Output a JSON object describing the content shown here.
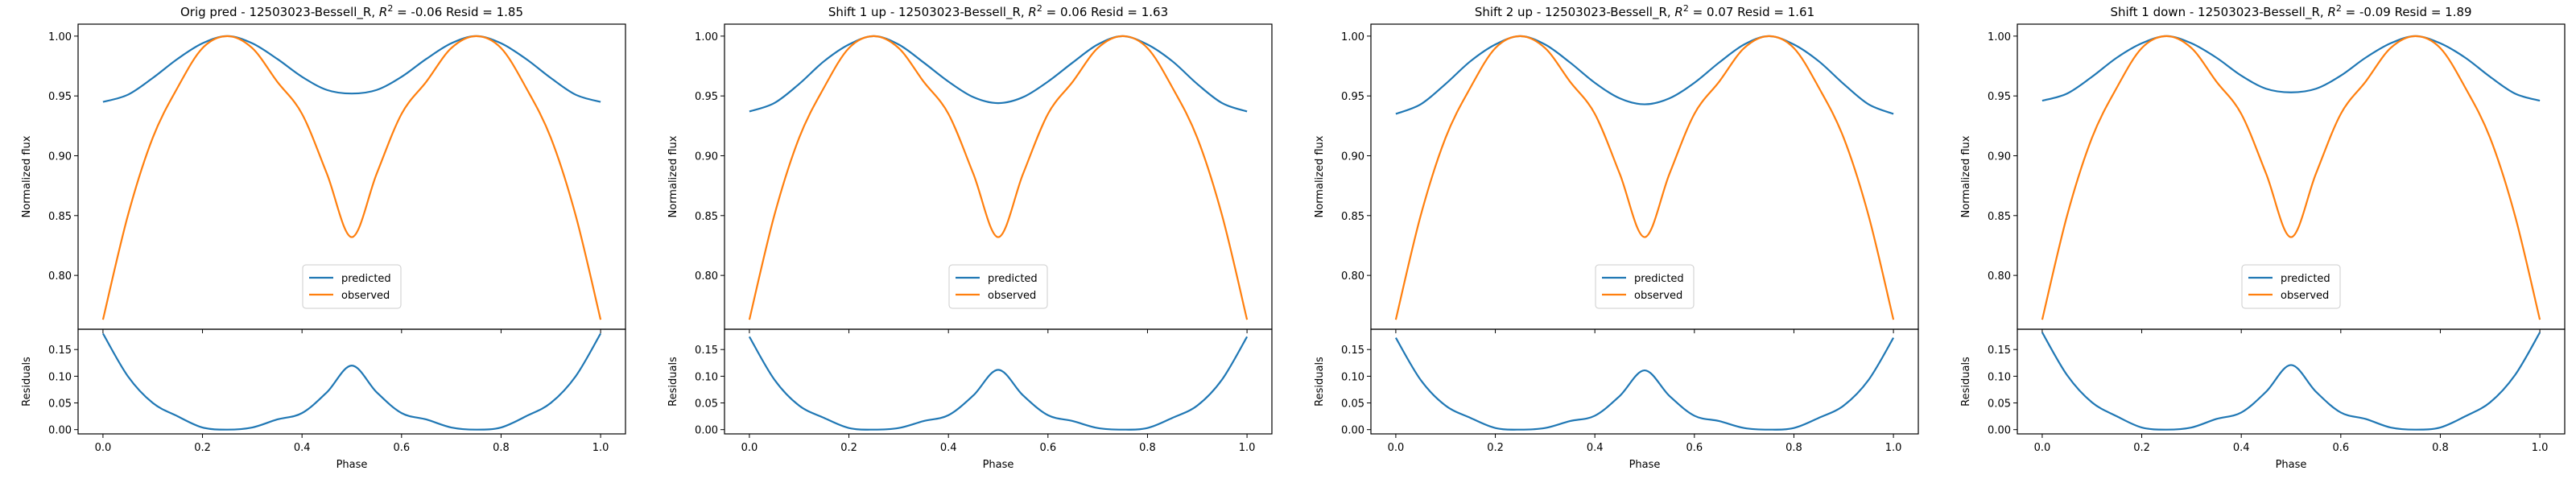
{
  "figure": {
    "colors": {
      "predicted": "#1f77b4",
      "observed": "#ff7f0e",
      "axis": "#000000"
    }
  },
  "chart_data": [
    {
      "type": "line",
      "title": "Orig pred - 12503023-Bessell_R, R² = -0.06 Resid = 1.85",
      "title_parts": {
        "prefix": "Orig pred - 12503023-Bessell_R, ",
        "r2": "-0.06",
        "resid_label": " Resid = ",
        "resid": "1.85"
      },
      "xlabel": "Phase",
      "ylabel": "Normalized flux",
      "residual_ylabel": "Residuals",
      "legend": {
        "placement": "lower center",
        "entries": [
          "predicted",
          "observed"
        ]
      },
      "xlim": [
        -0.05,
        1.05
      ],
      "ylim": [
        0.755,
        1.01
      ],
      "residual_ylim": [
        -0.008,
        0.188
      ],
      "x_ticks": [
        "0.0",
        "0.2",
        "0.4",
        "0.6",
        "0.8",
        "1.0"
      ],
      "y_ticks": [
        "0.80",
        "0.85",
        "0.90",
        "0.95",
        "1.00"
      ],
      "residual_ticks": [
        "0.00",
        "0.05",
        "0.10",
        "0.15"
      ],
      "x": [
        0.0,
        0.05,
        0.1,
        0.15,
        0.2,
        0.25,
        0.3,
        0.35,
        0.4,
        0.45,
        0.5,
        0.55,
        0.6,
        0.65,
        0.7,
        0.75,
        0.8,
        0.85,
        0.9,
        0.95,
        1.0
      ],
      "series": [
        {
          "name": "predicted",
          "values": [
            0.945,
            0.951,
            0.965,
            0.981,
            0.994,
            1.0,
            0.994,
            0.981,
            0.966,
            0.955,
            0.952,
            0.955,
            0.966,
            0.981,
            0.994,
            1.0,
            0.994,
            0.981,
            0.965,
            0.951,
            0.945
          ]
        },
        {
          "name": "observed",
          "values": [
            0.763,
            0.85,
            0.915,
            0.957,
            0.99,
            1.0,
            0.99,
            0.962,
            0.935,
            0.885,
            0.832,
            0.885,
            0.935,
            0.962,
            0.99,
            1.0,
            0.99,
            0.957,
            0.915,
            0.85,
            0.763
          ]
        }
      ],
      "residuals": [
        0.18,
        0.1,
        0.05,
        0.025,
        0.004,
        0.0,
        0.004,
        0.019,
        0.031,
        0.07,
        0.12,
        0.07,
        0.031,
        0.019,
        0.004,
        0.0,
        0.004,
        0.025,
        0.05,
        0.1,
        0.18
      ]
    },
    {
      "type": "line",
      "title": "Shift 1 up - 12503023-Bessell_R, R² = 0.06 Resid = 1.63",
      "title_parts": {
        "prefix": "Shift 1 up - 12503023-Bessell_R, ",
        "r2": "0.06",
        "resid_label": " Resid = ",
        "resid": "1.63"
      },
      "xlabel": "Phase",
      "ylabel": "Normalized flux",
      "residual_ylabel": "Residuals",
      "legend": {
        "placement": "lower center",
        "entries": [
          "predicted",
          "observed"
        ]
      },
      "xlim": [
        -0.05,
        1.05
      ],
      "ylim": [
        0.755,
        1.01
      ],
      "residual_ylim": [
        -0.008,
        0.188
      ],
      "x_ticks": [
        "0.0",
        "0.2",
        "0.4",
        "0.6",
        "0.8",
        "1.0"
      ],
      "y_ticks": [
        "0.80",
        "0.85",
        "0.90",
        "0.95",
        "1.00"
      ],
      "residual_ticks": [
        "0.00",
        "0.05",
        "0.10",
        "0.15"
      ],
      "x": [
        0.0,
        0.05,
        0.1,
        0.15,
        0.2,
        0.25,
        0.3,
        0.35,
        0.4,
        0.45,
        0.5,
        0.55,
        0.6,
        0.65,
        0.7,
        0.75,
        0.8,
        0.85,
        0.9,
        0.95,
        1.0
      ],
      "series": [
        {
          "name": "predicted",
          "values": [
            0.937,
            0.944,
            0.96,
            0.979,
            0.993,
            1.0,
            0.993,
            0.978,
            0.962,
            0.949,
            0.944,
            0.949,
            0.962,
            0.978,
            0.993,
            1.0,
            0.993,
            0.979,
            0.96,
            0.944,
            0.937
          ]
        },
        {
          "name": "observed",
          "values": [
            0.763,
            0.85,
            0.915,
            0.957,
            0.99,
            1.0,
            0.99,
            0.962,
            0.935,
            0.885,
            0.832,
            0.885,
            0.935,
            0.962,
            0.99,
            1.0,
            0.99,
            0.957,
            0.915,
            0.85,
            0.763
          ]
        }
      ],
      "residuals": [
        0.174,
        0.094,
        0.045,
        0.022,
        0.003,
        0.0,
        0.003,
        0.016,
        0.027,
        0.064,
        0.112,
        0.064,
        0.027,
        0.016,
        0.003,
        0.0,
        0.003,
        0.022,
        0.045,
        0.094,
        0.174
      ]
    },
    {
      "type": "line",
      "title": "Shift 2 up - 12503023-Bessell_R, R² = 0.07 Resid = 1.61",
      "title_parts": {
        "prefix": "Shift 2 up - 12503023-Bessell_R, ",
        "r2": "0.07",
        "resid_label": " Resid = ",
        "resid": "1.61"
      },
      "xlabel": "Phase",
      "ylabel": "Normalized flux",
      "residual_ylabel": "Residuals",
      "legend": {
        "placement": "lower center",
        "entries": [
          "predicted",
          "observed"
        ]
      },
      "xlim": [
        -0.05,
        1.05
      ],
      "ylim": [
        0.755,
        1.01
      ],
      "residual_ylim": [
        -0.008,
        0.188
      ],
      "x_ticks": [
        "0.0",
        "0.2",
        "0.4",
        "0.6",
        "0.8",
        "1.0"
      ],
      "y_ticks": [
        "0.80",
        "0.85",
        "0.90",
        "0.95",
        "1.00"
      ],
      "residual_ticks": [
        "0.00",
        "0.05",
        "0.10",
        "0.15"
      ],
      "x": [
        0.0,
        0.05,
        0.1,
        0.15,
        0.2,
        0.25,
        0.3,
        0.35,
        0.4,
        0.45,
        0.5,
        0.55,
        0.6,
        0.65,
        0.7,
        0.75,
        0.8,
        0.85,
        0.9,
        0.95,
        1.0
      ],
      "series": [
        {
          "name": "predicted",
          "values": [
            0.935,
            0.943,
            0.96,
            0.979,
            0.993,
            1.0,
            0.993,
            0.978,
            0.961,
            0.948,
            0.943,
            0.948,
            0.961,
            0.978,
            0.993,
            1.0,
            0.993,
            0.979,
            0.96,
            0.943,
            0.935
          ]
        },
        {
          "name": "observed",
          "values": [
            0.763,
            0.85,
            0.915,
            0.957,
            0.99,
            1.0,
            0.99,
            0.962,
            0.935,
            0.885,
            0.832,
            0.885,
            0.935,
            0.962,
            0.99,
            1.0,
            0.99,
            0.957,
            0.915,
            0.85,
            0.763
          ]
        }
      ],
      "residuals": [
        0.172,
        0.093,
        0.045,
        0.022,
        0.003,
        0.0,
        0.003,
        0.016,
        0.026,
        0.063,
        0.111,
        0.063,
        0.026,
        0.016,
        0.003,
        0.0,
        0.003,
        0.022,
        0.045,
        0.093,
        0.172
      ]
    },
    {
      "type": "line",
      "title": "Shift 1 down - 12503023-Bessell_R, R² = -0.09 Resid = 1.89",
      "title_parts": {
        "prefix": "Shift 1 down - 12503023-Bessell_R, ",
        "r2": "-0.09",
        "resid_label": " Resid = ",
        "resid": "1.89"
      },
      "xlabel": "Phase",
      "ylabel": "Normalized flux",
      "residual_ylabel": "Residuals",
      "legend": {
        "placement": "lower center",
        "entries": [
          "predicted",
          "observed"
        ]
      },
      "xlim": [
        -0.05,
        1.05
      ],
      "ylim": [
        0.755,
        1.01
      ],
      "residual_ylim": [
        -0.008,
        0.188
      ],
      "x_ticks": [
        "0.0",
        "0.2",
        "0.4",
        "0.6",
        "0.8",
        "1.0"
      ],
      "y_ticks": [
        "0.80",
        "0.85",
        "0.90",
        "0.95",
        "1.00"
      ],
      "residual_ticks": [
        "0.00",
        "0.05",
        "0.10",
        "0.15"
      ],
      "x": [
        0.0,
        0.05,
        0.1,
        0.15,
        0.2,
        0.25,
        0.3,
        0.35,
        0.4,
        0.45,
        0.5,
        0.55,
        0.6,
        0.65,
        0.7,
        0.75,
        0.8,
        0.85,
        0.9,
        0.95,
        1.0
      ],
      "series": [
        {
          "name": "predicted",
          "values": [
            0.946,
            0.952,
            0.966,
            0.982,
            0.994,
            1.0,
            0.994,
            0.982,
            0.967,
            0.956,
            0.953,
            0.956,
            0.967,
            0.982,
            0.994,
            1.0,
            0.994,
            0.982,
            0.966,
            0.952,
            0.946
          ]
        },
        {
          "name": "observed",
          "values": [
            0.763,
            0.85,
            0.915,
            0.957,
            0.99,
            1.0,
            0.99,
            0.962,
            0.935,
            0.885,
            0.832,
            0.885,
            0.935,
            0.962,
            0.99,
            1.0,
            0.99,
            0.957,
            0.915,
            0.85,
            0.763
          ]
        }
      ],
      "residuals": [
        0.182,
        0.102,
        0.051,
        0.025,
        0.004,
        0.0,
        0.004,
        0.02,
        0.032,
        0.071,
        0.121,
        0.071,
        0.032,
        0.02,
        0.004,
        0.0,
        0.004,
        0.025,
        0.051,
        0.102,
        0.182
      ]
    }
  ]
}
